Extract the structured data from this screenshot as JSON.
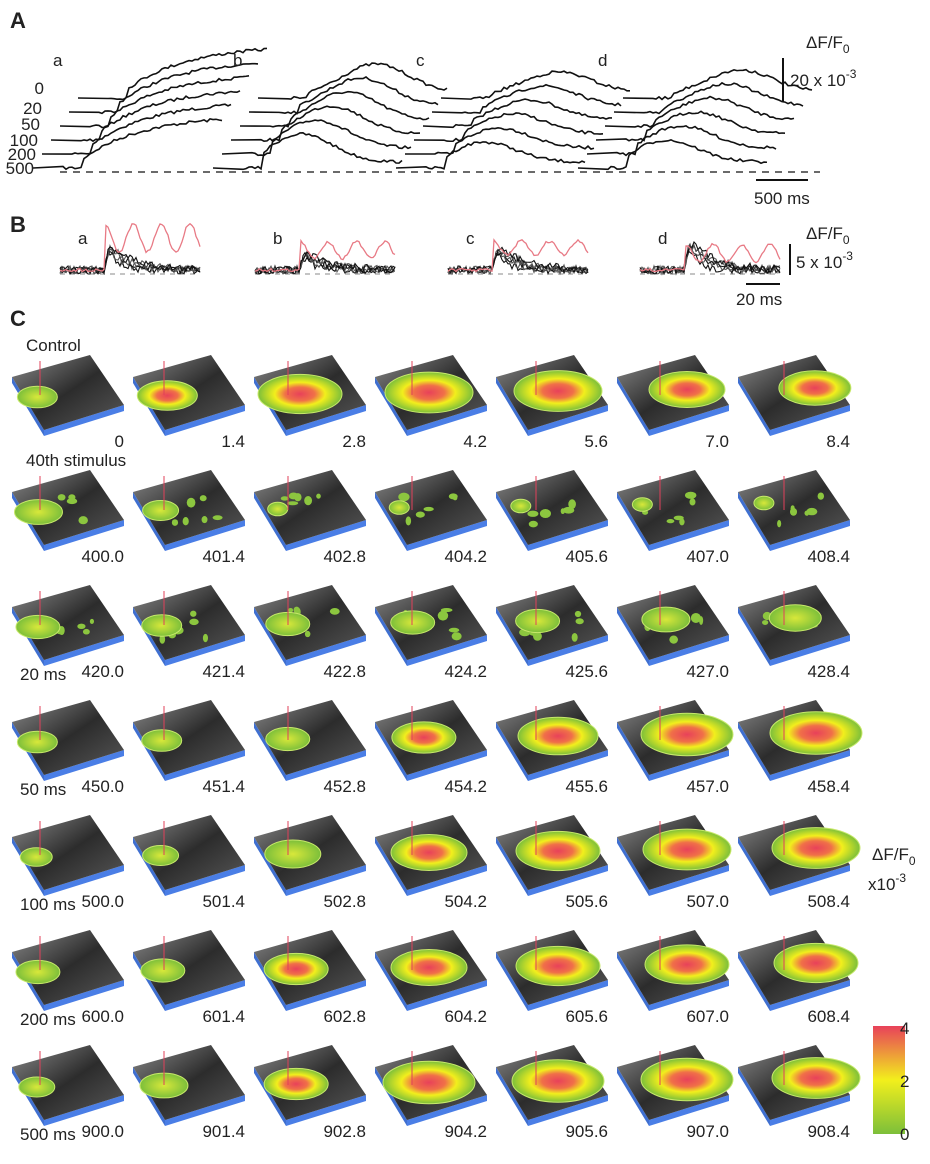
{
  "panel_a": {
    "letter": "A",
    "traces": [
      "a",
      "b",
      "c",
      "d"
    ],
    "intervals": [
      "0",
      "20",
      "50",
      "100",
      "200",
      "500"
    ],
    "scale_label": {
      "main": "ΔF/F",
      "sub": "0"
    },
    "scale_value": {
      "base": "20 x 10",
      "exp": "-3"
    },
    "time_scale": "500 ms"
  },
  "panel_b": {
    "letter": "B",
    "traces": [
      "a",
      "b",
      "c",
      "d"
    ],
    "scale_label": {
      "main": "ΔF/F",
      "sub": "0"
    },
    "scale_value": {
      "base": "5 x 10",
      "exp": "-3"
    },
    "time_scale": "20 ms"
  },
  "panel_c": {
    "letter": "C",
    "rows": [
      {
        "label": "Control",
        "times": [
          "0",
          "1.4",
          "2.8",
          "4.2",
          "5.6",
          "7.0",
          "8.4"
        ]
      },
      {
        "label": "40th stimulus",
        "times": [
          "400.0",
          "401.4",
          "402.8",
          "404.2",
          "405.6",
          "407.0",
          "408.4"
        ]
      },
      {
        "label": "20 ms",
        "times": [
          "420.0",
          "421.4",
          "422.8",
          "424.2",
          "425.6",
          "427.0",
          "428.4"
        ]
      },
      {
        "label": "50 ms",
        "times": [
          "450.0",
          "451.4",
          "452.8",
          "454.2",
          "455.6",
          "457.0",
          "458.4"
        ]
      },
      {
        "label": "100 ms",
        "times": [
          "500.0",
          "501.4",
          "502.8",
          "504.2",
          "505.6",
          "507.0",
          "508.4"
        ]
      },
      {
        "label": "200 ms",
        "times": [
          "600.0",
          "601.4",
          "602.8",
          "604.2",
          "605.6",
          "607.0",
          "608.4"
        ]
      },
      {
        "label": "500 ms",
        "times": [
          "900.0",
          "901.4",
          "902.8",
          "904.2",
          "905.6",
          "907.0",
          "908.4"
        ]
      }
    ],
    "colorbar": {
      "title": {
        "main": "ΔF/F",
        "sub": "0"
      },
      "unit": {
        "base": "x10",
        "exp": "-3"
      },
      "ticks": [
        4,
        2,
        0
      ]
    }
  }
}
